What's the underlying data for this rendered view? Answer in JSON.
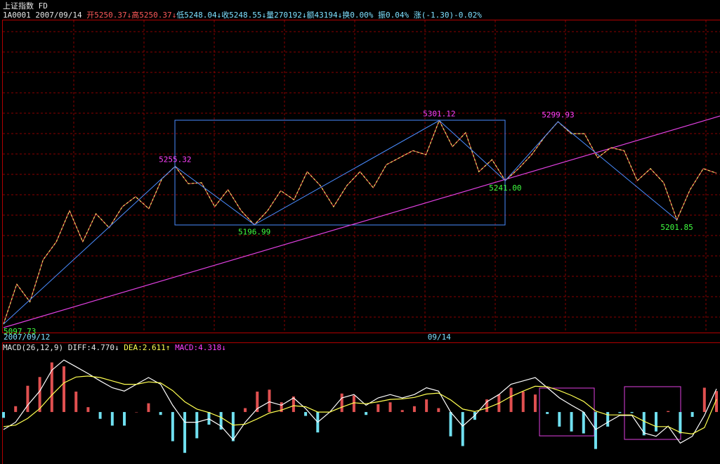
{
  "header": {
    "title": "上证指数 FD",
    "quote": [
      "1A0001",
      "2007/09/14",
      "开5250.37↓",
      "高5250.37↓",
      "低5248.04↓",
      "收5248.55↓",
      "量270192↓",
      "额43194↓",
      "换0.00%",
      "振0.04%",
      "涨(-1.30)-0.02%"
    ]
  },
  "chart_data": [
    {
      "type": "line",
      "color": "#f0e060",
      "categories": [
        "2007/09/12",
        null,
        null,
        null,
        null,
        null,
        null,
        null,
        null,
        null,
        null,
        null,
        null,
        null,
        null,
        null,
        null,
        null,
        null,
        null,
        null,
        null,
        null,
        null,
        null,
        null,
        null,
        null,
        null,
        null,
        null,
        null,
        null,
        "09/14",
        null,
        null,
        null,
        null,
        null,
        null,
        null,
        null,
        null,
        null,
        null,
        null,
        null,
        null,
        null,
        null,
        null,
        null,
        null,
        null,
        null
      ],
      "values": [
        5097.73,
        5137.7,
        5120,
        5162,
        5180,
        5211,
        5180,
        5208,
        5194,
        5215,
        5225,
        5213,
        5243,
        5255.32,
        5238,
        5239,
        5215,
        5232,
        5211,
        5196.99,
        5211,
        5231,
        5222,
        5250,
        5236,
        5215,
        5236,
        5250,
        5234,
        5257,
        5264,
        5271,
        5267,
        5301.12,
        5275,
        5289,
        5250,
        5262,
        5241,
        5253,
        5267,
        5285,
        5299.93,
        5288,
        5288,
        5264,
        5274,
        5271,
        5241,
        5253,
        5239,
        5201.85,
        5232,
        5253,
        5248.55
      ],
      "value_labels": [
        "5097.73",
        null,
        null,
        null,
        null,
        null,
        null,
        null,
        null,
        null,
        null,
        null,
        null,
        "5255.32",
        null,
        null,
        null,
        null,
        null,
        "5196.99",
        null,
        null,
        null,
        null,
        null,
        null,
        null,
        null,
        null,
        null,
        null,
        null,
        null,
        "5301.12",
        null,
        null,
        null,
        null,
        "5241.00",
        null,
        null,
        null,
        "5299.93",
        null,
        null,
        null,
        null,
        null,
        null,
        null,
        null,
        "5201.85",
        null,
        null,
        null
      ],
      "ylim": [
        5090,
        5411
      ]
    },
    {
      "type": "macd",
      "title": "MACD(26,12,9)",
      "legend": [
        "DIFF:4.770↓",
        "DEA:2.611↑",
        "MACD:4.318↓"
      ],
      "up_color": "#e05050",
      "down_color": "#70e0f0",
      "values": [
        -1.2,
        1.2,
        5.4,
        7.2,
        10.2,
        9.4,
        4.2,
        1.0,
        -1.4,
        -2.8,
        -2.8,
        0,
        1.8,
        -0.6,
        -6.0,
        -8.4,
        -5.4,
        -2.6,
        -3.6,
        -6.0,
        0.8,
        4.2,
        4.6,
        2.0,
        3.2,
        -0.8,
        -4.2,
        0,
        3.8,
        3.4,
        -0.6,
        1.6,
        2.0,
        0.4,
        1.2,
        2.6,
        0.8,
        -5.0,
        -7.0,
        -1.6,
        2.6,
        3.6,
        5.0,
        4.2,
        3.6,
        -0.4,
        -3.0,
        -4.0,
        -4.4,
        -7.6,
        -3.0,
        -0.2,
        -0.2,
        -4.8,
        -4.0,
        0.2,
        -4.4,
        -1.0,
        5.0,
        4.318
      ],
      "series": [
        {
          "color": "#ffffff",
          "values": [
            -3.6,
            -2.1,
            1.4,
            4.3,
            8.6,
            10.7,
            9.3,
            7.9,
            6.4,
            5.0,
            4.3,
            5.7,
            7.1,
            5.7,
            1.4,
            -2.1,
            -2.1,
            -1.4,
            -2.9,
            -5.7,
            -2.1,
            0.7,
            2.1,
            1.4,
            2.9,
            0.7,
            -2.1,
            0,
            2.9,
            3.6,
            1.4,
            2.9,
            3.6,
            2.9,
            3.6,
            5.0,
            4.3,
            0,
            -2.9,
            -0.7,
            2.1,
            3.6,
            5.7,
            6.4,
            7.1,
            5.0,
            2.9,
            1.4,
            0,
            -3.6,
            -2.1,
            -0.7,
            -0.7,
            -4.3,
            -5.0,
            -2.9,
            -6.4,
            -5.0,
            -0.7,
            4.77
          ]
        },
        {
          "color": "#ffff50",
          "values": [
            -3.0,
            -2.7,
            -1.3,
            0.7,
            3.5,
            6.0,
            7.2,
            7.4,
            7.1,
            6.4,
            5.7,
            5.7,
            6.2,
            6.0,
            4.4,
            2.1,
            0.6,
            -0.1,
            -1.1,
            -2.7,
            -2.5,
            -1.4,
            -0.2,
            0.4,
            1.3,
            1.1,
            0,
            0,
            1.0,
            1.9,
            1.7,
            2.1,
            2.6,
            2.7,
            3.0,
            3.7,
            3.9,
            2.5,
            0.6,
            0.1,
            0.8,
            1.8,
            3.2,
            4.3,
            5.3,
            5.2,
            4.4,
            3.4,
            2.2,
            0.2,
            -0.6,
            -0.6,
            -0.6,
            -1.9,
            -3.0,
            -3.0,
            -4.2,
            -4.5,
            -3.2,
            2.611
          ]
        }
      ],
      "ylim": [
        -10.4,
        13.6
      ]
    }
  ]
}
